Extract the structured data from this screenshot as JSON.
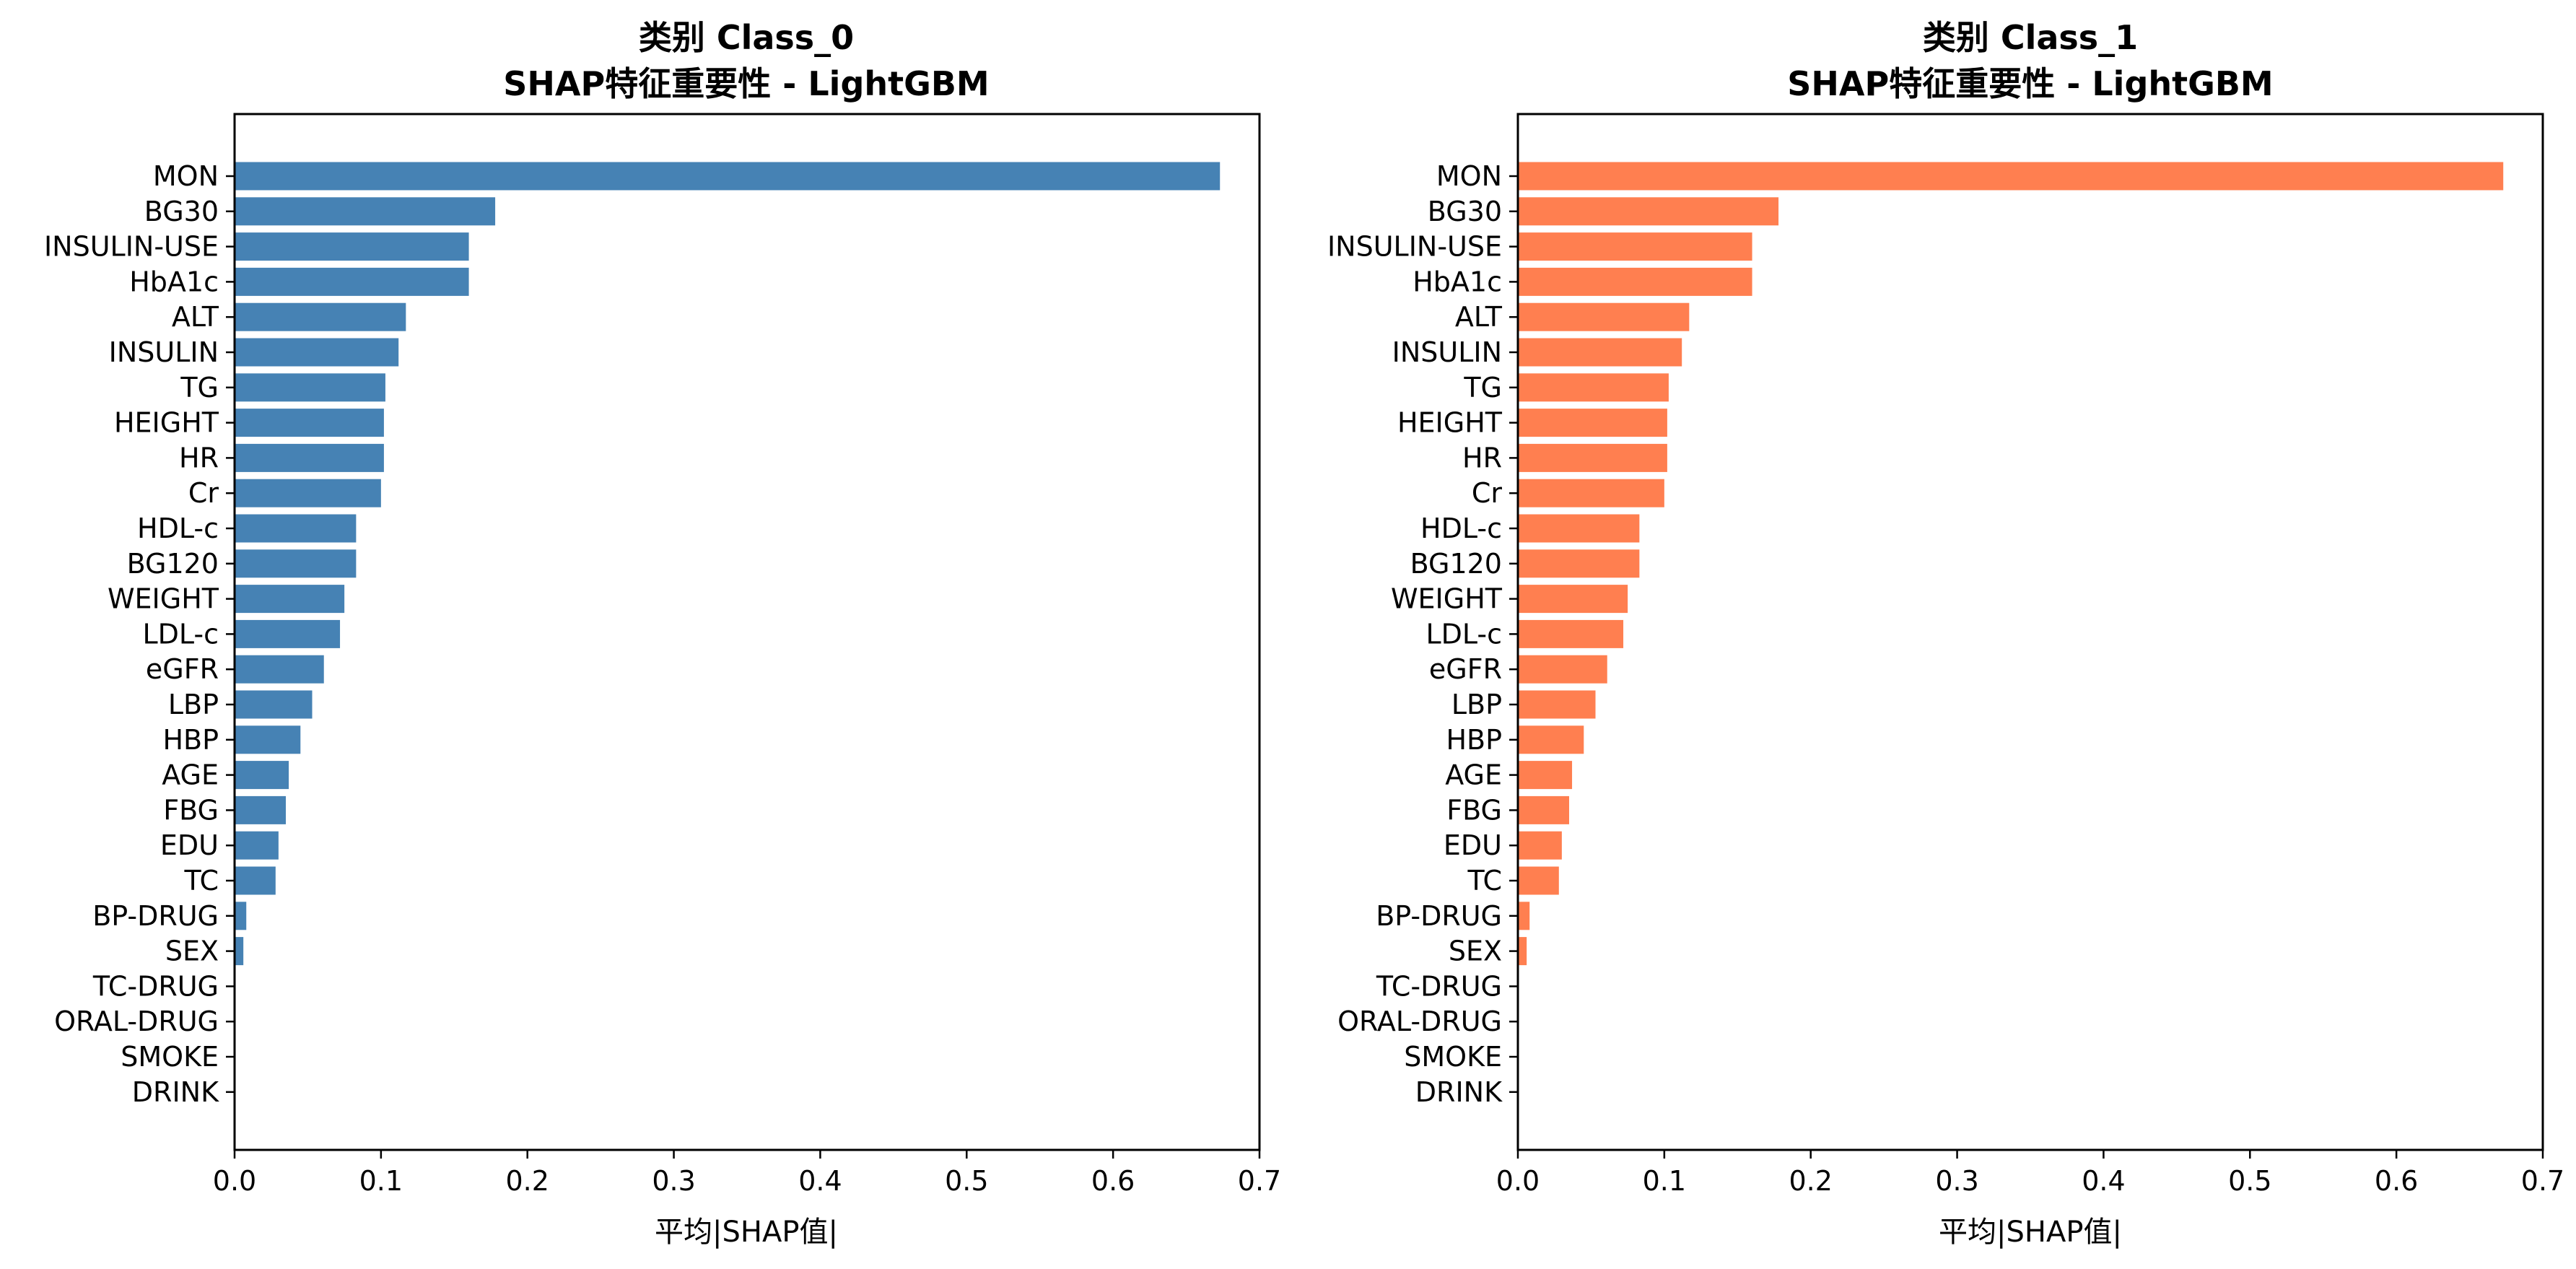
{
  "figure": {
    "colors": {
      "class0_bar": "#4682b4",
      "class1_bar": "#ff7f50",
      "axis": "#000000",
      "background": "#ffffff"
    }
  },
  "chart_data": [
    {
      "type": "bar",
      "orientation": "horizontal",
      "title_line1": "类别 Class_0",
      "title_line2": "SHAP特征重要性 - LightGBM",
      "xlabel": "平均|SHAP值|",
      "ylabel": "",
      "xlim": [
        0,
        0.7
      ],
      "xticks": [
        "0.0",
        "0.1",
        "0.2",
        "0.3",
        "0.4",
        "0.5",
        "0.6",
        "0.7"
      ],
      "grid": false,
      "color": "#4682b4",
      "categories": [
        "MON",
        "BG30",
        "INSULIN-USE",
        "HbA1c",
        "ALT",
        "INSULIN",
        "TG",
        "HEIGHT",
        "HR",
        "Cr",
        "HDL-c",
        "BG120",
        "WEIGHT",
        "LDL-c",
        "eGFR",
        "LBP",
        "HBP",
        "AGE",
        "FBG",
        "EDU",
        "TC",
        "BP-DRUG",
        "SEX",
        "TC-DRUG",
        "ORAL-DRUG",
        "SMOKE",
        "DRINK"
      ],
      "values": [
        0.673,
        0.178,
        0.16,
        0.16,
        0.117,
        0.112,
        0.103,
        0.102,
        0.102,
        0.1,
        0.083,
        0.083,
        0.075,
        0.072,
        0.061,
        0.053,
        0.045,
        0.037,
        0.035,
        0.03,
        0.028,
        0.008,
        0.006,
        0.0,
        0.0,
        0.0,
        0.0
      ]
    },
    {
      "type": "bar",
      "orientation": "horizontal",
      "title_line1": "类别 Class_1",
      "title_line2": "SHAP特征重要性 - LightGBM",
      "xlabel": "平均|SHAP值|",
      "ylabel": "",
      "xlim": [
        0,
        0.7
      ],
      "xticks": [
        "0.0",
        "0.1",
        "0.2",
        "0.3",
        "0.4",
        "0.5",
        "0.6",
        "0.7"
      ],
      "grid": false,
      "color": "#ff7f50",
      "categories": [
        "MON",
        "BG30",
        "INSULIN-USE",
        "HbA1c",
        "ALT",
        "INSULIN",
        "TG",
        "HEIGHT",
        "HR",
        "Cr",
        "HDL-c",
        "BG120",
        "WEIGHT",
        "LDL-c",
        "eGFR",
        "LBP",
        "HBP",
        "AGE",
        "FBG",
        "EDU",
        "TC",
        "BP-DRUG",
        "SEX",
        "TC-DRUG",
        "ORAL-DRUG",
        "SMOKE",
        "DRINK"
      ],
      "values": [
        0.673,
        0.178,
        0.16,
        0.16,
        0.117,
        0.112,
        0.103,
        0.102,
        0.102,
        0.1,
        0.083,
        0.083,
        0.075,
        0.072,
        0.061,
        0.053,
        0.045,
        0.037,
        0.035,
        0.03,
        0.028,
        0.008,
        0.006,
        0.0,
        0.0,
        0.0,
        0.0
      ]
    }
  ]
}
